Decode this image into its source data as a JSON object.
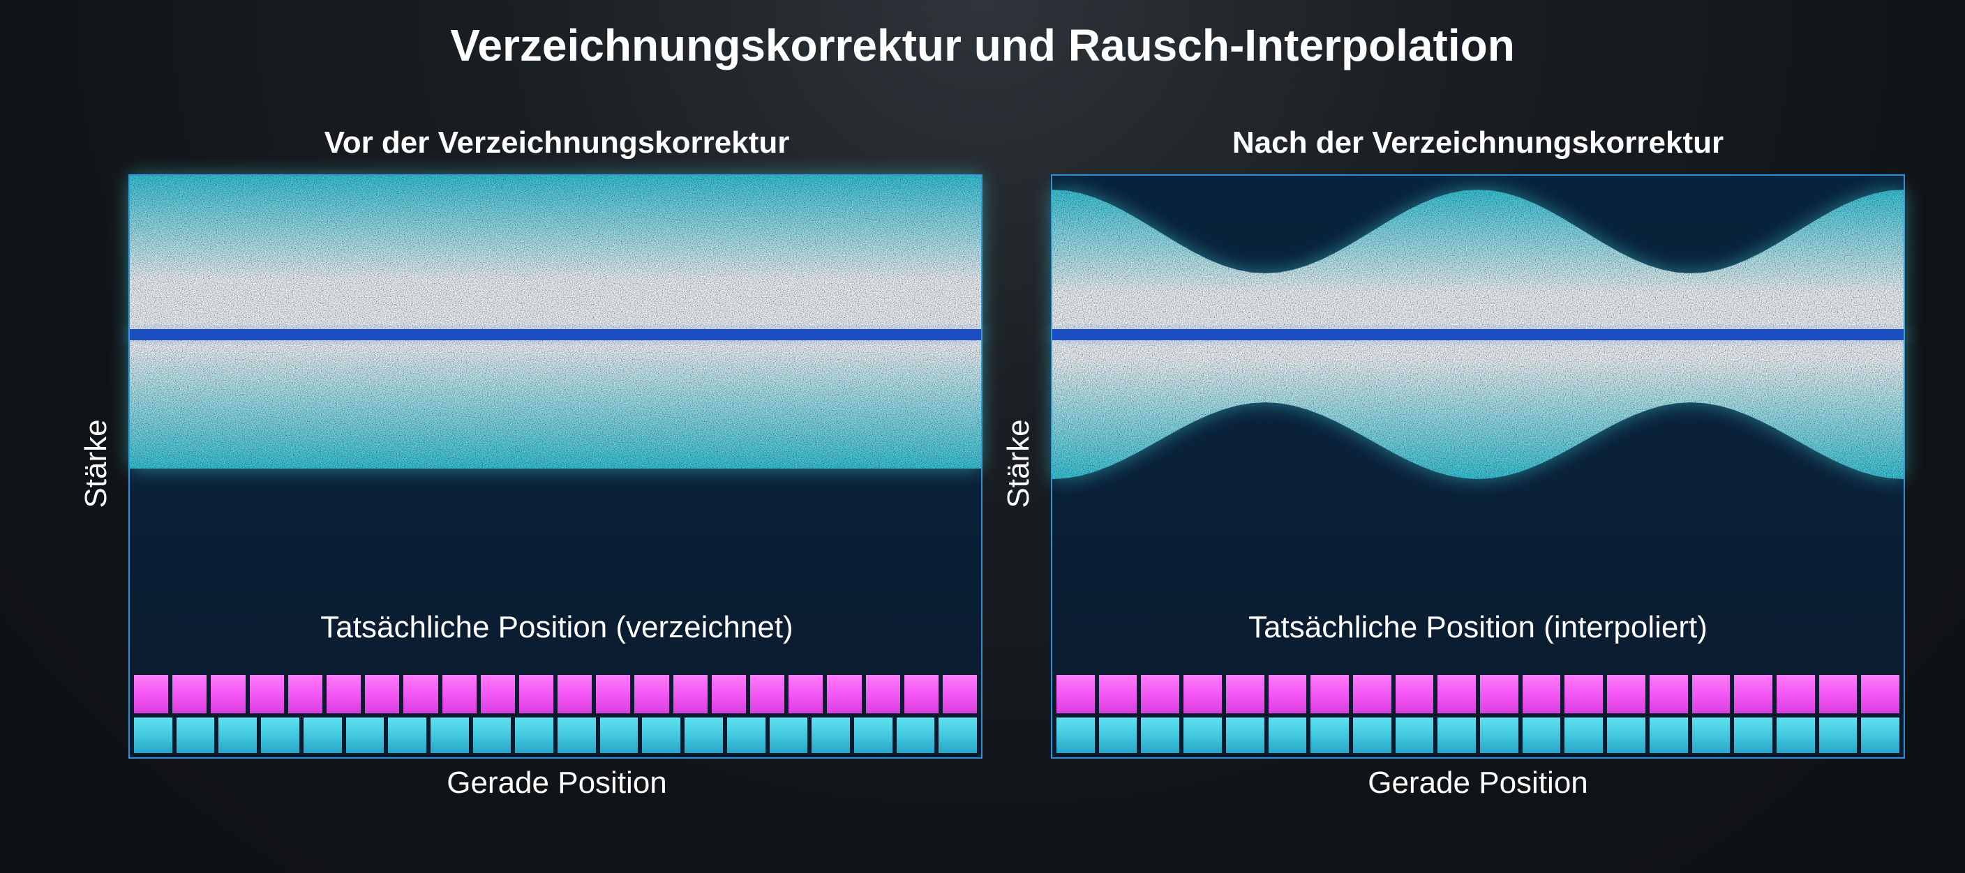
{
  "title": "Verzeichnungskorrektur und Rausch-Interpolation",
  "panels": [
    {
      "id": "before",
      "title": "Vor der Verzeichnungskorrektur",
      "ylabel": "Stärke",
      "caption": "Tatsächliche Position (verzeichnet)",
      "xlabel": "Gerade Position",
      "band_shape": "flat",
      "top_row_cells": 22,
      "bottom_row_cells": 20
    },
    {
      "id": "after",
      "title": "Nach der Verzeichnungskorrektur",
      "ylabel": "Stärke",
      "caption": "Tatsächliche Position (interpoliert)",
      "xlabel": "Gerade Position",
      "band_shape": "wavy",
      "top_row_cells": 20,
      "bottom_row_cells": 20
    }
  ],
  "colors": {
    "frame_border": "#2f8fd8",
    "band_cyan": "#3cc7d8",
    "band_white": "#f2f6f8",
    "center_line": "#1d4fbf",
    "cell_pink": "#f155f2",
    "cell_cyan": "#3fc6dd"
  }
}
